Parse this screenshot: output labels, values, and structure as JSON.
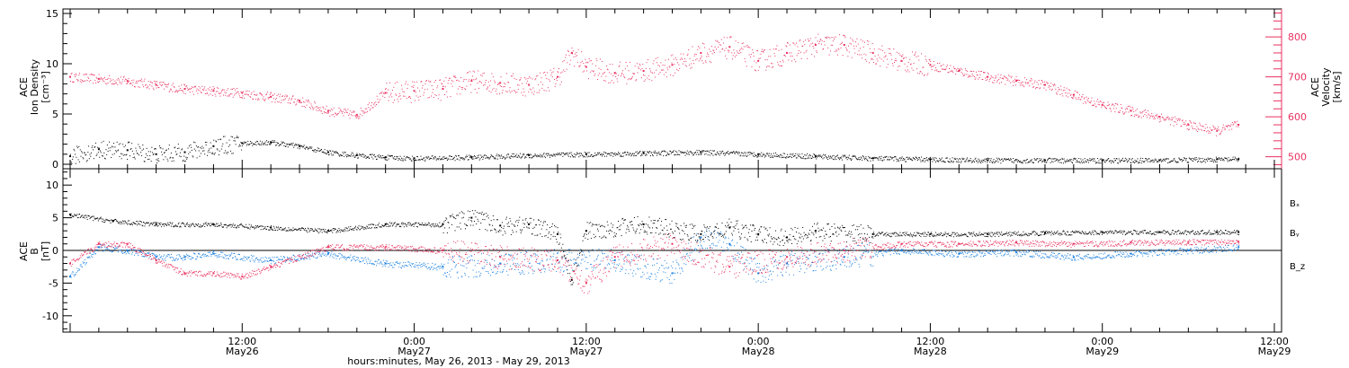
{
  "chart_data": [
    {
      "type": "scatter",
      "panel": "top",
      "title": "",
      "xlabel": "",
      "ylabel_left": [
        "ACE",
        "Ion Density",
        "[cm⁻³]"
      ],
      "ylabel_right": [
        "ACE",
        "Velocity",
        "[km/s]"
      ],
      "x_hours_range": [
        0,
        84
      ],
      "ylim_left": [
        0,
        15
      ],
      "ylim_right": [
        470,
        870
      ],
      "yticks_left": [
        0,
        5,
        10,
        15
      ],
      "yticks_right": [
        500,
        600,
        700,
        800
      ],
      "colors": {
        "density": "#000000",
        "velocity": "#e8315f"
      },
      "series": [
        {
          "name": "",
          "axis": "left",
          "color": "#000000",
          "x_hours": [
            0,
            2,
            4,
            6,
            8,
            10,
            12,
            14,
            16,
            18,
            20,
            22,
            24,
            28,
            32,
            36,
            40,
            44,
            48,
            52,
            56,
            60,
            64,
            68,
            72,
            76,
            80,
            81.5
          ],
          "values": [
            0.8,
            1.5,
            1.4,
            1.0,
            1.2,
            1.8,
            2.1,
            2.2,
            1.8,
            1.2,
            0.9,
            0.7,
            0.6,
            0.7,
            0.9,
            1.0,
            1.1,
            1.2,
            1.0,
            0.8,
            0.6,
            0.5,
            0.4,
            0.4,
            0.4,
            0.4,
            0.5,
            0.5
          ]
        },
        {
          "name": "",
          "axis": "right",
          "color": "#e8315f",
          "x_hours": [
            0,
            2,
            4,
            6,
            8,
            10,
            12,
            14,
            16,
            18,
            20,
            22,
            24,
            26,
            28,
            30,
            32,
            34,
            35,
            36,
            38,
            40,
            42,
            44,
            46,
            48,
            50,
            52,
            54,
            56,
            58,
            60,
            62,
            64,
            66,
            68,
            70,
            72,
            74,
            76,
            78,
            80,
            81.5
          ],
          "values": [
            700,
            695,
            690,
            680,
            670,
            665,
            660,
            650,
            640,
            615,
            605,
            660,
            665,
            670,
            690,
            685,
            680,
            700,
            760,
            725,
            710,
            715,
            730,
            760,
            775,
            740,
            760,
            780,
            780,
            760,
            740,
            730,
            715,
            700,
            690,
            680,
            655,
            630,
            615,
            600,
            580,
            565,
            580
          ]
        }
      ]
    },
    {
      "type": "scatter",
      "panel": "bottom",
      "title": "",
      "xlabel": "hours:minutes, May 26, 2013 - May 29, 2013",
      "ylabel_left": [
        "ACE",
        "B",
        "[nT]"
      ],
      "x_hours_range": [
        0,
        84
      ],
      "ylim": [
        -12.5,
        12.5
      ],
      "yticks": [
        -10,
        -5,
        0,
        5,
        10
      ],
      "zero_line": true,
      "legend": "right",
      "series": [
        {
          "name": "Bₓ",
          "color": "#000000",
          "x_hours": [
            0,
            3,
            6,
            10,
            14,
            18,
            22,
            26,
            28,
            30,
            32,
            34,
            35,
            36,
            40,
            44,
            46,
            48,
            50,
            52,
            56,
            60,
            64,
            68,
            72,
            76,
            80,
            81.5
          ],
          "values": [
            5.5,
            4.5,
            4.0,
            4.0,
            3.5,
            3.0,
            4.0,
            4.0,
            5.0,
            3.8,
            4.0,
            2.5,
            -4.5,
            3.0,
            4.0,
            2.5,
            3.5,
            2.5,
            2.0,
            3.0,
            2.5,
            2.5,
            2.5,
            2.7,
            2.8,
            2.8,
            2.8,
            2.8
          ]
        },
        {
          "name": "Bᵧ",
          "color": "#1a7fe0",
          "x_hours": [
            0,
            2,
            4,
            6,
            8,
            10,
            14,
            18,
            22,
            26,
            30,
            34,
            38,
            42,
            44,
            46,
            48,
            50,
            54,
            58,
            62,
            66,
            70,
            74,
            78,
            81.5
          ],
          "values": [
            -4.0,
            0.5,
            0.0,
            -1.0,
            -1.0,
            -0.5,
            -1.5,
            -0.5,
            -2.0,
            -2.5,
            -2.0,
            -1.5,
            -1.5,
            -3.5,
            2.0,
            1.0,
            -3.5,
            -2.0,
            -1.0,
            0.0,
            -0.5,
            -0.3,
            -1.0,
            -0.5,
            0.0,
            0.5
          ]
        },
        {
          "name": "B_z",
          "color": "#e8315f",
          "x_hours": [
            0,
            2,
            4,
            6,
            8,
            10,
            12,
            14,
            18,
            22,
            26,
            30,
            34,
            36,
            38,
            42,
            46,
            50,
            54,
            58,
            62,
            66,
            70,
            74,
            78,
            81.5
          ],
          "values": [
            -2.0,
            1.0,
            1.0,
            -1.5,
            -3.5,
            -3.5,
            -4.0,
            -2.5,
            0.5,
            0.5,
            0.0,
            -1.0,
            -1.5,
            -5.0,
            -1.0,
            1.0,
            -2.5,
            -1.0,
            0.0,
            1.0,
            1.0,
            1.2,
            1.0,
            1.2,
            1.3,
            1.3
          ]
        }
      ]
    }
  ],
  "x_axis": {
    "tick_labels": [
      {
        "hour": 12,
        "time": "12:00",
        "date": "May26"
      },
      {
        "hour": 24,
        "time": "0:00",
        "date": "May27"
      },
      {
        "hour": 36,
        "time": "12:00",
        "date": "May27"
      },
      {
        "hour": 48,
        "time": "0:00",
        "date": "May28"
      },
      {
        "hour": 60,
        "time": "12:00",
        "date": "May28"
      },
      {
        "hour": 72,
        "time": "0:00",
        "date": "May29"
      },
      {
        "hour": 84,
        "time": "12:00",
        "date": "May29"
      }
    ]
  }
}
